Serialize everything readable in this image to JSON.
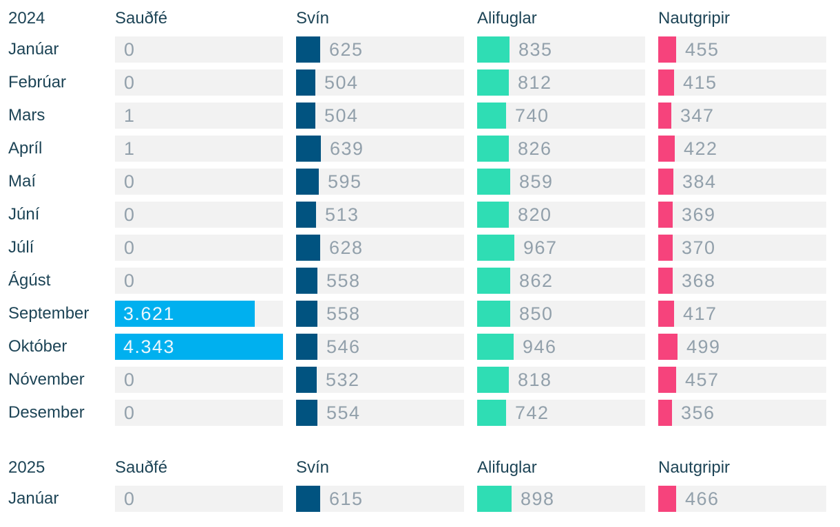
{
  "colors": {
    "saudfe_bar": "#00b0ef",
    "svin_bar": "#015380",
    "alifuglar_bar": "#2fddb4",
    "nautgripir_bar": "#f6437c",
    "cell_background": "#f2f2f2",
    "heading_text": "#1d4456",
    "value_text": "#92a0ab",
    "value_text_inside_bar": "#eaf7fd"
  },
  "columns": [
    "Sauðfé",
    "Svín",
    "Alifuglar",
    "Nautgripir"
  ],
  "max_value": 4343,
  "sections": [
    {
      "year": "2024",
      "rows": [
        {
          "month": "Janúar",
          "cells": [
            {
              "label": "0",
              "value": 0
            },
            {
              "label": "625",
              "value": 625
            },
            {
              "label": "835",
              "value": 835
            },
            {
              "label": "455",
              "value": 455
            }
          ]
        },
        {
          "month": "Febrúar",
          "cells": [
            {
              "label": "0",
              "value": 0
            },
            {
              "label": "504",
              "value": 504
            },
            {
              "label": "812",
              "value": 812
            },
            {
              "label": "415",
              "value": 415
            }
          ]
        },
        {
          "month": "Mars",
          "cells": [
            {
              "label": "1",
              "value": 1
            },
            {
              "label": "504",
              "value": 504
            },
            {
              "label": "740",
              "value": 740
            },
            {
              "label": "347",
              "value": 347
            }
          ]
        },
        {
          "month": "Apríl",
          "cells": [
            {
              "label": "1",
              "value": 1
            },
            {
              "label": "639",
              "value": 639
            },
            {
              "label": "826",
              "value": 826
            },
            {
              "label": "422",
              "value": 422
            }
          ]
        },
        {
          "month": "Maí",
          "cells": [
            {
              "label": "0",
              "value": 0
            },
            {
              "label": "595",
              "value": 595
            },
            {
              "label": "859",
              "value": 859
            },
            {
              "label": "384",
              "value": 384
            }
          ]
        },
        {
          "month": "Júní",
          "cells": [
            {
              "label": "0",
              "value": 0
            },
            {
              "label": "513",
              "value": 513
            },
            {
              "label": "820",
              "value": 820
            },
            {
              "label": "369",
              "value": 369
            }
          ]
        },
        {
          "month": "Júlí",
          "cells": [
            {
              "label": "0",
              "value": 0
            },
            {
              "label": "628",
              "value": 628
            },
            {
              "label": "967",
              "value": 967
            },
            {
              "label": "370",
              "value": 370
            }
          ]
        },
        {
          "month": "Ágúst",
          "cells": [
            {
              "label": "0",
              "value": 0
            },
            {
              "label": "558",
              "value": 558
            },
            {
              "label": "862",
              "value": 862
            },
            {
              "label": "368",
              "value": 368
            }
          ]
        },
        {
          "month": "September",
          "cells": [
            {
              "label": "3.621",
              "value": 3621
            },
            {
              "label": "558",
              "value": 558
            },
            {
              "label": "850",
              "value": 850
            },
            {
              "label": "417",
              "value": 417
            }
          ]
        },
        {
          "month": "Október",
          "cells": [
            {
              "label": "4.343",
              "value": 4343
            },
            {
              "label": "546",
              "value": 546
            },
            {
              "label": "946",
              "value": 946
            },
            {
              "label": "499",
              "value": 499
            }
          ]
        },
        {
          "month": "Nóvember",
          "cells": [
            {
              "label": "0",
              "value": 0
            },
            {
              "label": "532",
              "value": 532
            },
            {
              "label": "818",
              "value": 818
            },
            {
              "label": "457",
              "value": 457
            }
          ]
        },
        {
          "month": "Desember",
          "cells": [
            {
              "label": "0",
              "value": 0
            },
            {
              "label": "554",
              "value": 554
            },
            {
              "label": "742",
              "value": 742
            },
            {
              "label": "356",
              "value": 356
            }
          ]
        }
      ]
    },
    {
      "year": "2025",
      "rows": [
        {
          "month": "Janúar",
          "cells": [
            {
              "label": "0",
              "value": 0
            },
            {
              "label": "615",
              "value": 615
            },
            {
              "label": "898",
              "value": 898
            },
            {
              "label": "466",
              "value": 466
            }
          ]
        }
      ]
    }
  ],
  "chart_data": {
    "type": "bar",
    "orientation": "horizontal",
    "xlim": [
      0,
      4343
    ],
    "grid": false,
    "legend_position": "column-headers",
    "groups": [
      {
        "year": "2024",
        "categories": [
          "Janúar",
          "Febrúar",
          "Mars",
          "Apríl",
          "Maí",
          "Júní",
          "Júlí",
          "Ágúst",
          "September",
          "Október",
          "Nóvember",
          "Desember"
        ],
        "series": [
          {
            "name": "Sauðfé",
            "values": [
              0,
              0,
              1,
              1,
              0,
              0,
              0,
              0,
              3621,
              4343,
              0,
              0
            ]
          },
          {
            "name": "Svín",
            "values": [
              625,
              504,
              504,
              639,
              595,
              513,
              628,
              558,
              558,
              546,
              532,
              554
            ]
          },
          {
            "name": "Alifuglar",
            "values": [
              835,
              812,
              740,
              826,
              859,
              820,
              967,
              862,
              850,
              946,
              818,
              742
            ]
          },
          {
            "name": "Nautgripir",
            "values": [
              455,
              415,
              347,
              422,
              384,
              369,
              370,
              368,
              417,
              499,
              457,
              356
            ]
          }
        ]
      },
      {
        "year": "2025",
        "categories": [
          "Janúar"
        ],
        "series": [
          {
            "name": "Sauðfé",
            "values": [
              0
            ]
          },
          {
            "name": "Svín",
            "values": [
              615
            ]
          },
          {
            "name": "Alifuglar",
            "values": [
              898
            ]
          },
          {
            "name": "Nautgripir",
            "values": [
              466
            ]
          }
        ]
      }
    ]
  }
}
